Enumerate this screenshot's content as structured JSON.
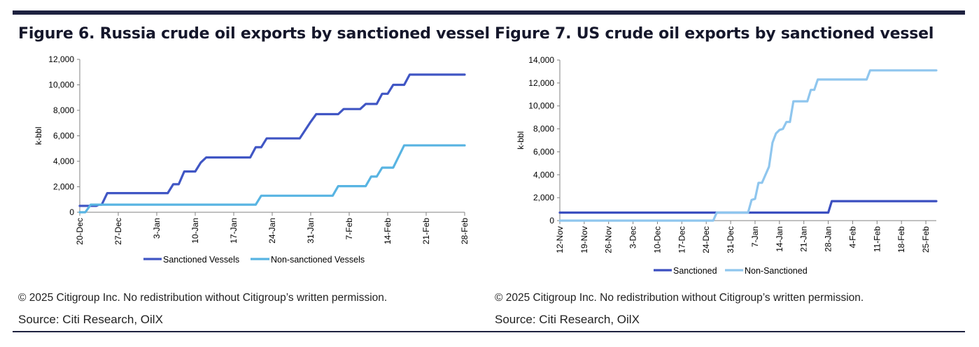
{
  "chart_data": [
    {
      "type": "line",
      "title": "Figure 6. Russia crude oil exports by sanctioned vessel",
      "ylabel": "k-bbl",
      "xlabel": "",
      "ylim": [
        0,
        12000
      ],
      "yticks": [
        "0",
        "2,000",
        "4,000",
        "6,000",
        "8,000",
        "10,000",
        "12,000"
      ],
      "ytick_values": [
        0,
        2000,
        4000,
        6000,
        8000,
        10000,
        12000
      ],
      "xlim": [
        0,
        70
      ],
      "xticks": [
        "20-Dec",
        "27-Dec",
        "3-Jan",
        "10-Jan",
        "17-Jan",
        "24-Jan",
        "31-Jan",
        "7-Feb",
        "14-Feb",
        "21-Feb",
        "28-Feb"
      ],
      "xtick_positions": [
        0,
        7,
        14,
        21,
        28,
        35,
        42,
        49,
        56,
        63,
        70
      ],
      "legend": "bottom",
      "grid": false,
      "series": [
        {
          "name": "Sanctioned Vessels",
          "color": "#4056c4",
          "points": [
            [
              0,
              500
            ],
            [
              3,
              500
            ],
            [
              3.5,
              600
            ],
            [
              4,
              600
            ],
            [
              5,
              1500
            ],
            [
              16,
              1500
            ],
            [
              17,
              2200
            ],
            [
              18,
              2200
            ],
            [
              19,
              3200
            ],
            [
              21,
              3200
            ],
            [
              22,
              3900
            ],
            [
              23,
              4300
            ],
            [
              31,
              4300
            ],
            [
              32,
              5100
            ],
            [
              33,
              5100
            ],
            [
              34,
              5800
            ],
            [
              40,
              5800
            ],
            [
              42,
              7100
            ],
            [
              43,
              7700
            ],
            [
              47,
              7700
            ],
            [
              48,
              8100
            ],
            [
              51,
              8100
            ],
            [
              52,
              8500
            ],
            [
              54,
              8500
            ],
            [
              55,
              9300
            ],
            [
              56,
              9300
            ],
            [
              57,
              10000
            ],
            [
              59,
              10000
            ],
            [
              60,
              10800
            ],
            [
              70,
              10800
            ]
          ]
        },
        {
          "name": "Non-sanctioned Vessels",
          "color": "#58b4e2",
          "points": [
            [
              0,
              0
            ],
            [
              1,
              0
            ],
            [
              2,
              600
            ],
            [
              32,
              600
            ],
            [
              33,
              1300
            ],
            [
              46,
              1300
            ],
            [
              47,
              2050
            ],
            [
              52,
              2050
            ],
            [
              53,
              2800
            ],
            [
              54,
              2800
            ],
            [
              55,
              3500
            ],
            [
              57,
              3500
            ],
            [
              59,
              5250
            ],
            [
              70,
              5250
            ]
          ]
        }
      ]
    },
    {
      "type": "line",
      "title": "Figure 7. US crude oil exports by sanctioned vessel",
      "ylabel": "k-bbl",
      "xlabel": "",
      "ylim": [
        0,
        14000
      ],
      "yticks": [
        "0",
        "2,000",
        "4,000",
        "6,000",
        "8,000",
        "10,000",
        "12,000",
        "14,000"
      ],
      "ytick_values": [
        0,
        2000,
        4000,
        6000,
        8000,
        10000,
        12000,
        14000
      ],
      "xlim": [
        0,
        108
      ],
      "xticks": [
        "12-Nov",
        "19-Nov",
        "26-Nov",
        "3-Dec",
        "10-Dec",
        "17-Dec",
        "24-Dec",
        "31-Dec",
        "7-Jan",
        "14-Jan",
        "21-Jan",
        "28-Jan",
        "4-Feb",
        "11-Feb",
        "18-Feb",
        "25-Feb"
      ],
      "xtick_positions": [
        0,
        7,
        14,
        21,
        28,
        35,
        42,
        49,
        56,
        63,
        70,
        77,
        84,
        91,
        98,
        105
      ],
      "legend": "bottom",
      "grid": false,
      "series": [
        {
          "name": "Sanctioned",
          "color": "#3b4fc0",
          "points": [
            [
              0,
              700
            ],
            [
              77,
              700
            ],
            [
              78,
              1700
            ],
            [
              108,
              1700
            ]
          ]
        },
        {
          "name": "Non-Sanctioned",
          "color": "#8fc6ee",
          "points": [
            [
              0,
              0
            ],
            [
              44,
              0
            ],
            [
              45,
              700
            ],
            [
              54,
              700
            ],
            [
              55,
              1800
            ],
            [
              56,
              1900
            ],
            [
              57,
              3300
            ],
            [
              58,
              3300
            ],
            [
              60,
              4700
            ],
            [
              61,
              6800
            ],
            [
              62,
              7600
            ],
            [
              63,
              7900
            ],
            [
              64,
              8000
            ],
            [
              65,
              8600
            ],
            [
              66,
              8600
            ],
            [
              67,
              10400
            ],
            [
              71,
              10400
            ],
            [
              72,
              11400
            ],
            [
              73,
              11400
            ],
            [
              74,
              12300
            ],
            [
              88,
              12300
            ],
            [
              89,
              13100
            ],
            [
              108,
              13100
            ]
          ]
        }
      ]
    }
  ],
  "footer": {
    "copyright_left": "© 2025 Citigroup Inc. No redistribution without Citigroup’s written permission.",
    "source_left": "Source: Citi Research, OilX",
    "copyright_right": "© 2025 Citigroup Inc. No redistribution without Citigroup’s written permission.",
    "source_right": "Source: Citi Research, OilX"
  }
}
